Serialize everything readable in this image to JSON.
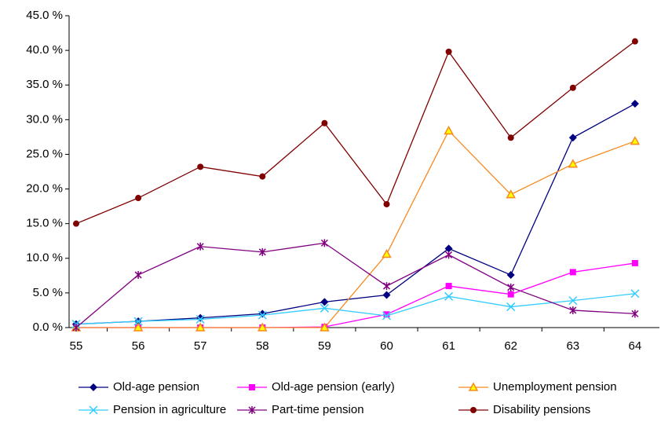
{
  "chart_data": {
    "type": "line",
    "categories": [
      "55",
      "56",
      "57",
      "58",
      "59",
      "60",
      "61",
      "62",
      "63",
      "64"
    ],
    "ylim": [
      0,
      45
    ],
    "yticks": [
      {
        "value": 0,
        "label": "0.0 %"
      },
      {
        "value": 5,
        "label": "5.0 %"
      },
      {
        "value": 10,
        "label": "10.0 %"
      },
      {
        "value": 15,
        "label": "15.0 %"
      },
      {
        "value": 20,
        "label": "20.0 %"
      },
      {
        "value": 25,
        "label": "25.0 %"
      },
      {
        "value": 30,
        "label": "30.0 %"
      },
      {
        "value": 35,
        "label": "35.0 %"
      },
      {
        "value": 40,
        "label": "40.0 %"
      },
      {
        "value": 45,
        "label": "45.0 %"
      }
    ],
    "grid": false,
    "legend": "bottom",
    "series": [
      {
        "name": "Old-age pension",
        "color": "#000080",
        "marker": "diamond",
        "values": [
          0.5,
          0.9,
          1.4,
          2.0,
          3.7,
          4.7,
          11.4,
          7.6,
          27.4,
          32.3
        ]
      },
      {
        "name": "Old-age pension (early)",
        "color": "#ff00ff",
        "marker": "square",
        "values": [
          0,
          0,
          0,
          0,
          0.1,
          1.9,
          6.0,
          4.8,
          8.0,
          9.3
        ]
      },
      {
        "name": "Unemployment pension",
        "color": "#f7891f",
        "marker": "triangle",
        "marker_fill": "#ffff00",
        "values": [
          0,
          0,
          0,
          0,
          0,
          10.6,
          28.4,
          19.2,
          23.6,
          26.9
        ]
      },
      {
        "name": "Pension in agriculture",
        "color": "#33ccff",
        "marker": "x",
        "values": [
          0.5,
          0.9,
          1.2,
          1.8,
          2.8,
          1.7,
          4.5,
          3.0,
          3.9,
          4.9
        ]
      },
      {
        "name": "Part-time pension",
        "color": "#800080",
        "marker": "star",
        "values": [
          0,
          7.6,
          11.7,
          10.9,
          12.2,
          6.0,
          10.5,
          5.8,
          2.5,
          2.0
        ]
      },
      {
        "name": "Disability pensions",
        "color": "#800000",
        "marker": "circle",
        "values": [
          15.0,
          18.7,
          23.2,
          21.8,
          29.5,
          17.8,
          39.8,
          27.4,
          34.6,
          41.3
        ]
      }
    ]
  }
}
